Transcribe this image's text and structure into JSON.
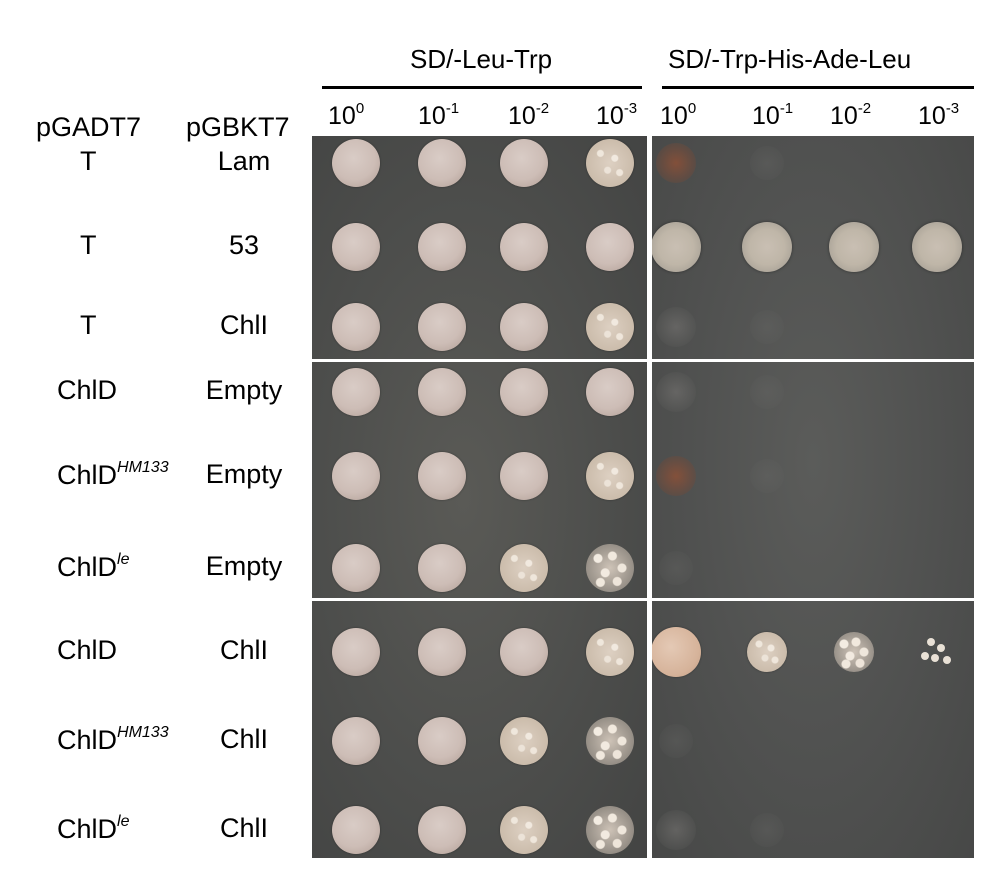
{
  "header": {
    "medium_left": "SD/-Leu-Trp",
    "medium_right": "SD/-Trp-His-Ade-Leu",
    "col_pgadt7": "pGADT7",
    "col_pgbkt7": "pGBKT7"
  },
  "dilutions": [
    {
      "base": "10",
      "exp": "0"
    },
    {
      "base": "10",
      "exp": "-1"
    },
    {
      "base": "10",
      "exp": "-2"
    },
    {
      "base": "10",
      "exp": "-3"
    },
    {
      "base": "10",
      "exp": "0"
    },
    {
      "base": "10",
      "exp": "-1"
    },
    {
      "base": "10",
      "exp": "-2"
    },
    {
      "base": "10",
      "exp": "-3"
    }
  ],
  "rows": [
    {
      "ad": "T",
      "ad_sup": "",
      "bd": "Lam",
      "left": [
        "full",
        "full",
        "full",
        "grainy"
      ],
      "right": [
        "tinted",
        "ghost",
        "none",
        "none"
      ]
    },
    {
      "ad": "T",
      "ad_sup": "",
      "bd": "53",
      "left": [
        "full",
        "full",
        "full",
        "full"
      ],
      "right": [
        "halo",
        "halo",
        "halo",
        "halo"
      ]
    },
    {
      "ad": "T",
      "ad_sup": "",
      "bd": "ChlI",
      "left": [
        "full",
        "full",
        "full",
        "grainy"
      ],
      "right": [
        "faint",
        "ghost",
        "none",
        "none"
      ]
    },
    {
      "ad": "ChlD",
      "ad_sup": "",
      "bd": "Empty",
      "left": [
        "full",
        "full",
        "full",
        "full"
      ],
      "right": [
        "faint",
        "ghost",
        "none",
        "none"
      ]
    },
    {
      "ad": "ChlD",
      "ad_sup": "HM133",
      "bd": "Empty",
      "left": [
        "full",
        "full",
        "full",
        "grainy"
      ],
      "right": [
        "tinted",
        "ghost",
        "none",
        "none"
      ]
    },
    {
      "ad": "ChlD",
      "ad_sup": "le",
      "bd": "Empty",
      "left": [
        "full",
        "full",
        "grainy",
        "colony"
      ],
      "right": [
        "ghost",
        "none",
        "none",
        "none"
      ]
    },
    {
      "ad": "ChlD",
      "ad_sup": "",
      "bd": "ChlI",
      "left": [
        "full",
        "full",
        "full",
        "grainy"
      ],
      "right": [
        "tan",
        "grainy",
        "colony",
        "micro"
      ]
    },
    {
      "ad": "ChlD",
      "ad_sup": "HM133",
      "bd": "ChlI",
      "left": [
        "full",
        "full",
        "grainy",
        "colony"
      ],
      "right": [
        "ghost",
        "none",
        "none",
        "none"
      ]
    },
    {
      "ad": "ChlD",
      "ad_sup": "le",
      "bd": "ChlI",
      "left": [
        "full",
        "full",
        "grainy",
        "colony"
      ],
      "right": [
        "faint",
        "ghost",
        "none",
        "none"
      ]
    }
  ]
}
